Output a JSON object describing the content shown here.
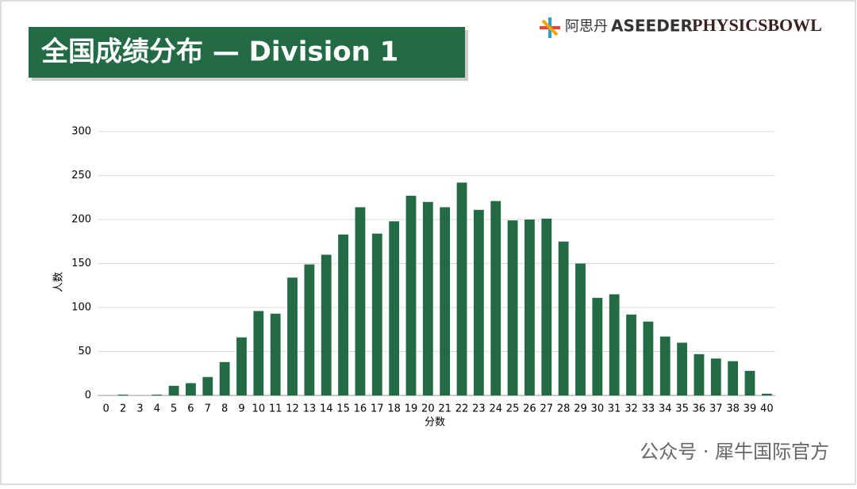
{
  "logos": {
    "brand_cn": "阿思丹",
    "brand_en": "ASEEDER",
    "competition": "PHYSICSBOWL"
  },
  "watermark": "公众号 · 犀牛国际官方",
  "chart_data": {
    "type": "bar",
    "title": "全国成绩分布 — Division 1",
    "x_label": "分数",
    "y_label": "人数",
    "categories": [
      "0",
      "2",
      "3",
      "4",
      "5",
      "6",
      "7",
      "8",
      "9",
      "10",
      "11",
      "12",
      "13",
      "14",
      "15",
      "16",
      "17",
      "18",
      "19",
      "20",
      "21",
      "22",
      "23",
      "24",
      "25",
      "26",
      "27",
      "28",
      "29",
      "30",
      "31",
      "32",
      "33",
      "34",
      "35",
      "36",
      "37",
      "38",
      "39",
      "40"
    ],
    "values": [
      0,
      1,
      0,
      1,
      11,
      14,
      21,
      38,
      66,
      96,
      93,
      134,
      149,
      160,
      183,
      214,
      184,
      198,
      227,
      220,
      214,
      242,
      211,
      221,
      199,
      200,
      201,
      175,
      150,
      111,
      115,
      92,
      84,
      67,
      60,
      47,
      42,
      39,
      28,
      2
    ],
    "color": "#236b45",
    "ylim": [
      0,
      300
    ],
    "yticks": [
      0,
      50,
      100,
      150,
      200,
      250,
      300
    ],
    "grid": true
  }
}
